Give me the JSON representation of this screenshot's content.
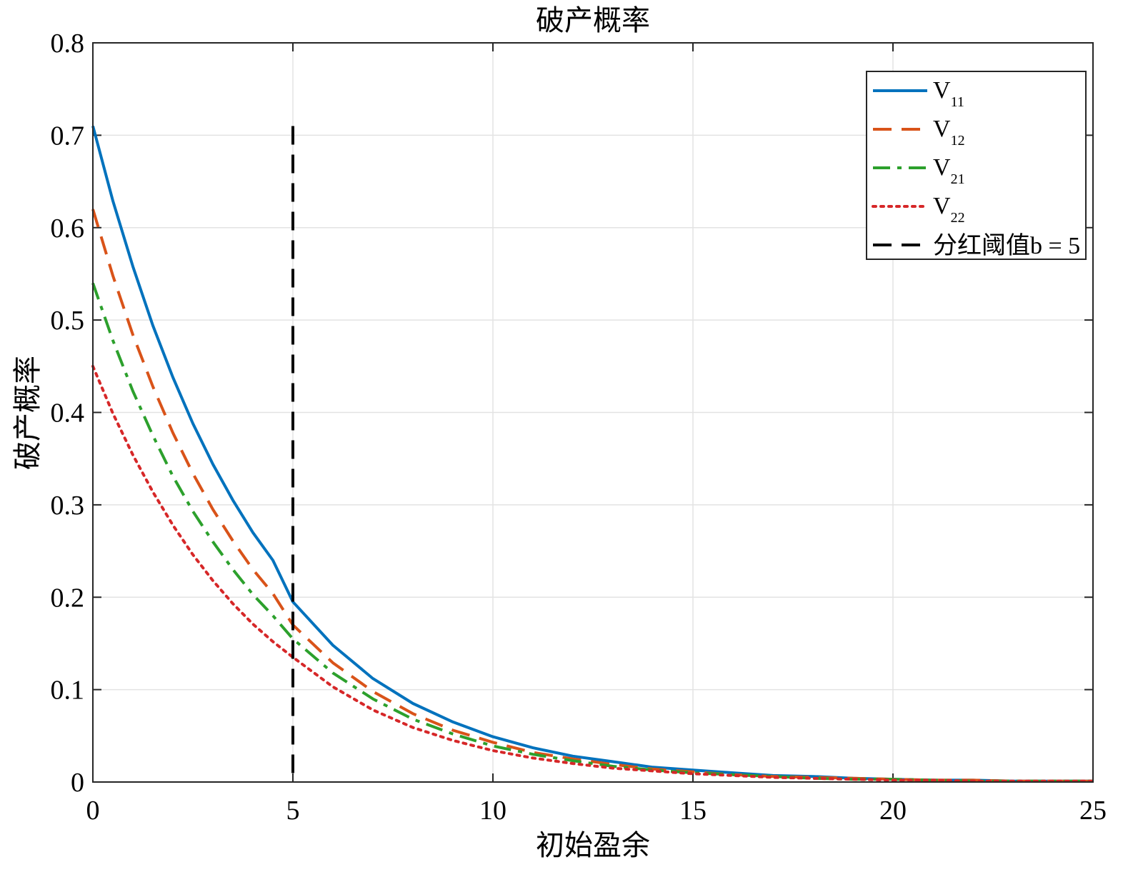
{
  "chart_data": {
    "type": "line",
    "title": "破产概率",
    "xlabel": "初始盈余",
    "ylabel": "破产概率",
    "xlim": [
      0,
      25
    ],
    "ylim": [
      0,
      0.8
    ],
    "xticks": [
      "0",
      "5",
      "10",
      "15",
      "20",
      "25"
    ],
    "yticks": [
      "0",
      "0.1",
      "0.2",
      "0.3",
      "0.4",
      "0.5",
      "0.6",
      "0.7",
      "0.8"
    ],
    "grid": true,
    "legend_position": "top-right",
    "series": [
      {
        "name": "V11",
        "label_main": "V",
        "label_sub": "11",
        "color": "#0072BD",
        "style": "solid",
        "x": [
          0,
          0.5,
          1,
          1.5,
          2,
          2.5,
          3,
          3.5,
          4,
          4.5,
          5,
          6,
          7,
          8,
          9,
          10,
          11,
          12,
          13,
          14,
          15,
          16,
          17,
          18,
          19,
          20,
          21,
          22,
          23,
          24,
          25
        ],
        "y": [
          0.71,
          0.629,
          0.558,
          0.494,
          0.438,
          0.388,
          0.344,
          0.305,
          0.27,
          0.24,
          0.195,
          0.148,
          0.112,
          0.085,
          0.065,
          0.049,
          0.037,
          0.028,
          0.022,
          0.016,
          0.013,
          0.01,
          0.007,
          0.006,
          0.004,
          0.003,
          0.002,
          0.002,
          0.001,
          0.001,
          0.001
        ]
      },
      {
        "name": "V12",
        "label_main": "V",
        "label_sub": "12",
        "color": "#D95319",
        "style": "dashed",
        "x": [
          0,
          0.5,
          1,
          1.5,
          2,
          2.5,
          3,
          3.5,
          4,
          4.5,
          5,
          6,
          7,
          8,
          9,
          10,
          11,
          12,
          13,
          14,
          15,
          16,
          17,
          18,
          19,
          20,
          21,
          22,
          23,
          24,
          25
        ],
        "y": [
          0.62,
          0.548,
          0.484,
          0.428,
          0.378,
          0.334,
          0.295,
          0.261,
          0.23,
          0.204,
          0.17,
          0.129,
          0.098,
          0.074,
          0.056,
          0.043,
          0.032,
          0.025,
          0.019,
          0.014,
          0.011,
          0.008,
          0.006,
          0.005,
          0.004,
          0.003,
          0.002,
          0.002,
          0.001,
          0.001,
          0.001
        ]
      },
      {
        "name": "V21",
        "label_main": "V",
        "label_sub": "21",
        "color": "#2CA02C",
        "style": "dashdot",
        "x": [
          0,
          0.5,
          1,
          1.5,
          2,
          2.5,
          3,
          3.5,
          4,
          4.5,
          5,
          6,
          7,
          8,
          9,
          10,
          11,
          12,
          13,
          14,
          15,
          16,
          17,
          18,
          19,
          20,
          21,
          22,
          23,
          24,
          25
        ],
        "y": [
          0.54,
          0.478,
          0.423,
          0.375,
          0.331,
          0.293,
          0.26,
          0.23,
          0.203,
          0.18,
          0.155,
          0.118,
          0.09,
          0.068,
          0.052,
          0.039,
          0.03,
          0.023,
          0.017,
          0.013,
          0.01,
          0.008,
          0.006,
          0.004,
          0.003,
          0.003,
          0.002,
          0.001,
          0.001,
          0.001,
          0.001
        ]
      },
      {
        "name": "V22",
        "label_main": "V",
        "label_sub": "22",
        "color": "#D62728",
        "style": "dotted",
        "x": [
          0,
          0.5,
          1,
          1.5,
          2,
          2.5,
          3,
          3.5,
          4,
          4.5,
          5,
          6,
          7,
          8,
          9,
          10,
          11,
          12,
          13,
          14,
          15,
          16,
          17,
          18,
          19,
          20,
          21,
          22,
          23,
          24,
          25
        ],
        "y": [
          0.45,
          0.399,
          0.354,
          0.314,
          0.278,
          0.246,
          0.218,
          0.193,
          0.171,
          0.152,
          0.135,
          0.103,
          0.078,
          0.059,
          0.045,
          0.034,
          0.026,
          0.02,
          0.015,
          0.012,
          0.009,
          0.007,
          0.005,
          0.004,
          0.003,
          0.002,
          0.002,
          0.001,
          0.001,
          0.001,
          0.001
        ]
      }
    ],
    "threshold": {
      "label": "分红阈值b = 5",
      "x": 5,
      "y_range": [
        0,
        0.71
      ],
      "color": "#000000",
      "style": "dashed"
    }
  }
}
